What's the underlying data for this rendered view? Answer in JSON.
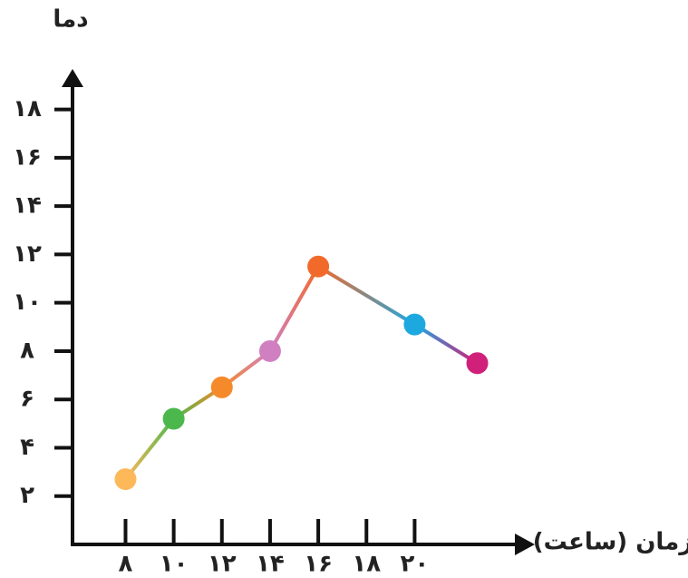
{
  "chart_data": {
    "type": "line",
    "ylabel": "دما",
    "xlabel": "زمان (ساعت)",
    "x": [
      8,
      10,
      12,
      14,
      16,
      20,
      22.6
    ],
    "series": [
      {
        "values": [
          2.7,
          5.2,
          6.5,
          8,
          11.5,
          9.1,
          7.5
        ],
        "colors": [
          "#fdb85a",
          "#4cb84c",
          "#f58a2a",
          "#d080c0",
          "#f26a2a",
          "#1ea8e0",
          "#d0207a"
        ]
      }
    ],
    "xlim": [
      5.8,
      24.8
    ],
    "ylim": [
      0,
      19.6
    ],
    "xticks": [
      {
        "value": 8,
        "label": "۸"
      },
      {
        "value": 10,
        "label": "۱۰"
      },
      {
        "value": 12,
        "label": "۱۲"
      },
      {
        "value": 14,
        "label": "۱۴"
      },
      {
        "value": 16,
        "label": "۱۶"
      },
      {
        "value": 18,
        "label": "۱۸"
      },
      {
        "value": 20,
        "label": "۲۰"
      }
    ],
    "yticks": [
      {
        "value": 2,
        "label": "۲"
      },
      {
        "value": 4,
        "label": "۴"
      },
      {
        "value": 6,
        "label": "۶"
      },
      {
        "value": 8,
        "label": "۸"
      },
      {
        "value": 10,
        "label": "۱۰"
      },
      {
        "value": 12,
        "label": "۱۲"
      },
      {
        "value": 14,
        "label": "۱۴"
      },
      {
        "value": 16,
        "label": "۱۶"
      },
      {
        "value": 18,
        "label": "۱۸"
      }
    ]
  }
}
